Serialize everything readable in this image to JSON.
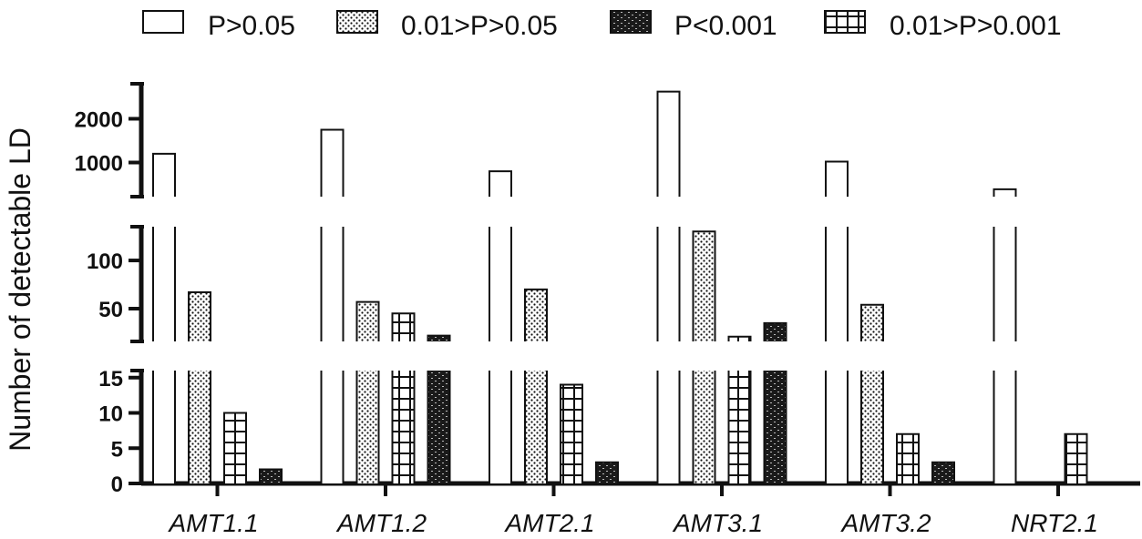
{
  "chart_data": {
    "type": "bar",
    "broken_axis": true,
    "ylabel": "Number of detectable LD",
    "xlabel": "",
    "categories": [
      "AMT1.1",
      "AMT1.2",
      "AMT2.1",
      "AMT3.1",
      "AMT3.2",
      "NRT2.1"
    ],
    "series": [
      {
        "name": "P>0.05",
        "pattern": "empty",
        "values": [
          1200,
          1750,
          800,
          2620,
          1020,
          390
        ]
      },
      {
        "name": "0.01>P>0.05",
        "pattern": "dots",
        "values": [
          67,
          57,
          70,
          130,
          54,
          0
        ]
      },
      {
        "name": "0.01>P>0.001",
        "pattern": "grid",
        "values": [
          10,
          45,
          14,
          21,
          7,
          7
        ]
      },
      {
        "name": "P<0.001",
        "pattern": "dark-bricks",
        "values": [
          2,
          22,
          3,
          35,
          3,
          0
        ]
      }
    ],
    "legend": [
      {
        "label": "P>0.05",
        "pattern": "empty"
      },
      {
        "label": "0.01>P>0.05",
        "pattern": "dots"
      },
      {
        "label": "P<0.001",
        "pattern": "dark-bricks"
      },
      {
        "label": "0.01>P>0.001",
        "pattern": "grid"
      }
    ],
    "legend_position": "top",
    "segments": [
      {
        "name": "bottom",
        "ylim": [
          0,
          16
        ],
        "ticks": [
          0,
          5,
          10,
          15
        ]
      },
      {
        "name": "middle",
        "ylim": [
          16,
          135
        ],
        "ticks": [
          50,
          100
        ]
      },
      {
        "name": "top",
        "ylim": [
          220,
          2800
        ],
        "ticks": [
          1000,
          2000
        ]
      }
    ],
    "colors": {
      "ink": "#111111",
      "fill": "#ffffff"
    }
  }
}
